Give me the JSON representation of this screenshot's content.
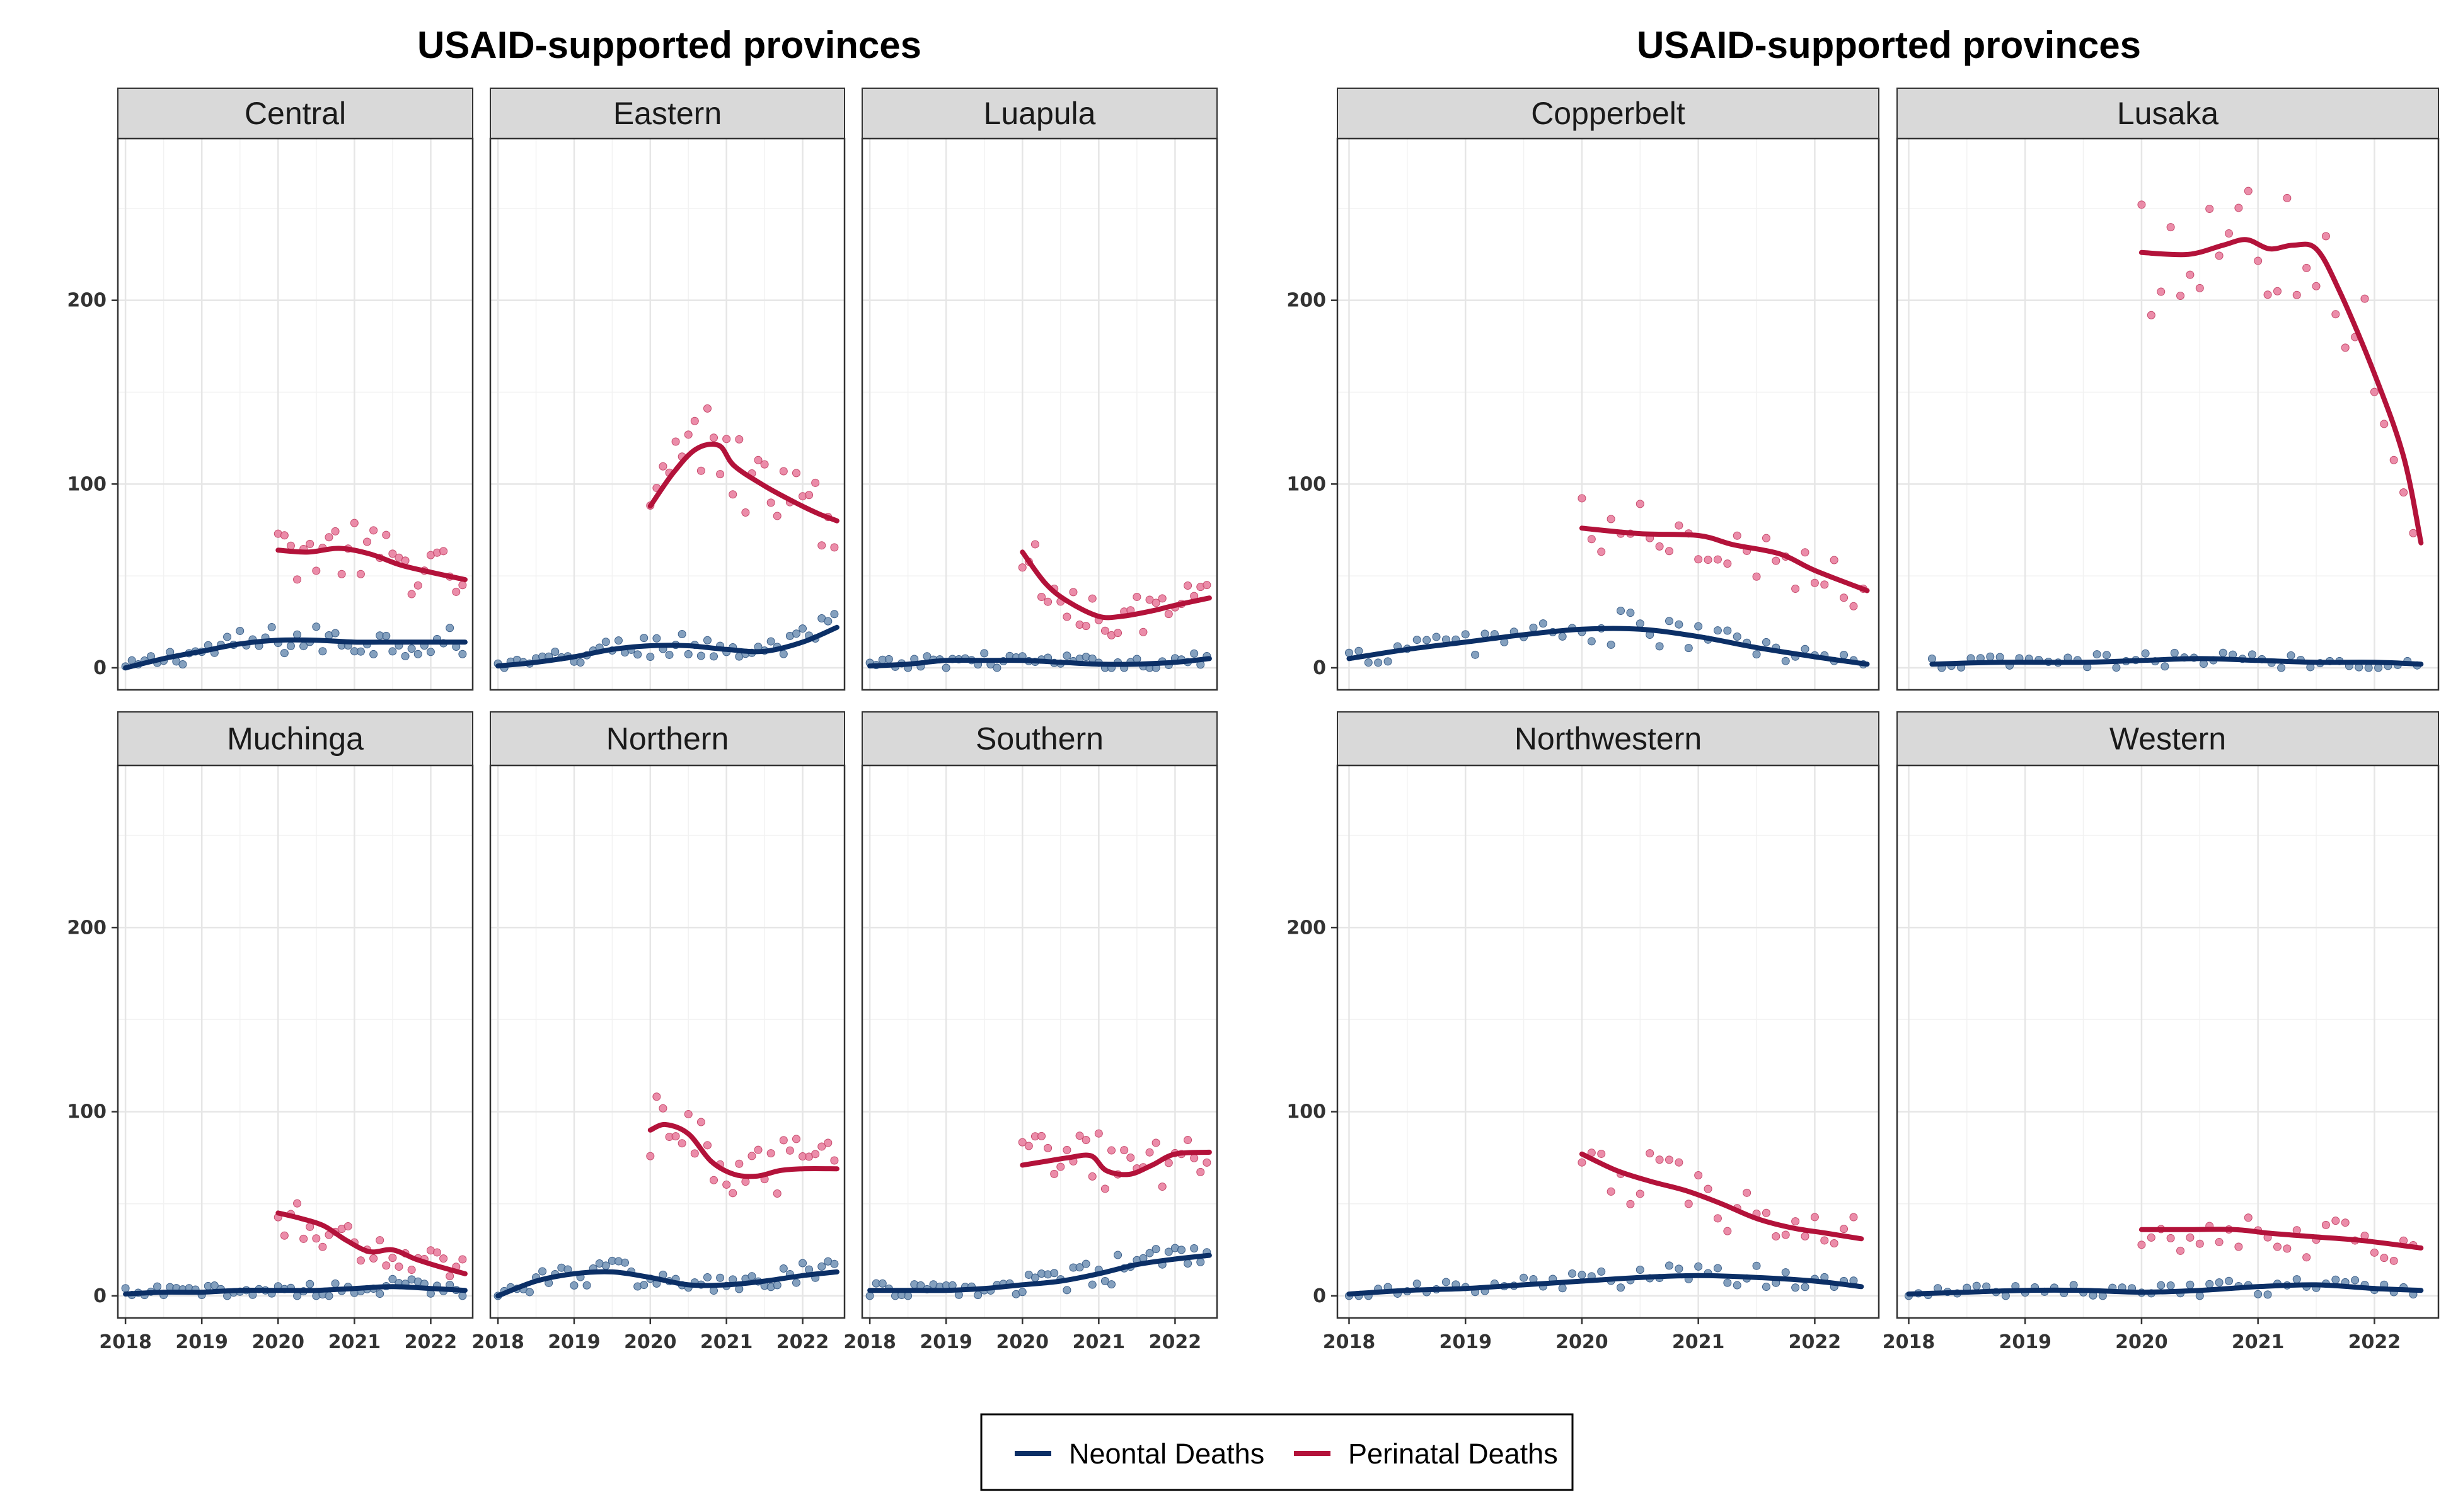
{
  "chart_data": {
    "type": "line",
    "group_titles": [
      "USAID-supported provinces",
      "USAID-supported provinces"
    ],
    "x_ticks": [
      2018,
      2019,
      2020,
      2021,
      2022
    ],
    "y_ticks": [
      0,
      100,
      200
    ],
    "xlim": [
      2017.9,
      2022.55
    ],
    "ylim": [
      -12,
      288
    ],
    "grid": true,
    "legend_position": "bottom",
    "series_names": [
      "Neontal Deaths",
      "Perinatal Deaths"
    ],
    "colors": {
      "neonatal": "#0b2f66",
      "perinatal": "#b3123a",
      "neonatal_points": "#6f8fb3",
      "perinatal_points": "#e8789a",
      "strip_fill": "#d9d9d9",
      "grid": "#e6e6e6"
    },
    "panels": [
      {
        "name": "Central",
        "neonatal_trend": [
          [
            2018.0,
            0
          ],
          [
            2018.5,
            5
          ],
          [
            2019.0,
            9
          ],
          [
            2019.5,
            13
          ],
          [
            2020.0,
            15
          ],
          [
            2020.5,
            15
          ],
          [
            2021.0,
            14
          ],
          [
            2021.5,
            14
          ],
          [
            2022.0,
            14
          ],
          [
            2022.45,
            14
          ]
        ],
        "perinatal_trend": [
          [
            2020.0,
            64
          ],
          [
            2020.4,
            63
          ],
          [
            2020.8,
            65
          ],
          [
            2021.2,
            62
          ],
          [
            2021.6,
            56
          ],
          [
            2022.0,
            52
          ],
          [
            2022.45,
            48
          ]
        ]
      },
      {
        "name": "Eastern",
        "neonatal_trend": [
          [
            2018.0,
            1
          ],
          [
            2018.5,
            3
          ],
          [
            2019.0,
            6
          ],
          [
            2019.5,
            10
          ],
          [
            2020.0,
            12
          ],
          [
            2020.5,
            12
          ],
          [
            2021.0,
            10
          ],
          [
            2021.5,
            9
          ],
          [
            2022.0,
            14
          ],
          [
            2022.45,
            22
          ]
        ],
        "perinatal_trend": [
          [
            2020.0,
            88
          ],
          [
            2020.3,
            106
          ],
          [
            2020.6,
            119
          ],
          [
            2020.9,
            121
          ],
          [
            2021.1,
            110
          ],
          [
            2021.5,
            99
          ],
          [
            2021.9,
            90
          ],
          [
            2022.2,
            84
          ],
          [
            2022.45,
            80
          ]
        ]
      },
      {
        "name": "Luapula",
        "neonatal_trend": [
          [
            2018.0,
            1
          ],
          [
            2018.5,
            2
          ],
          [
            2019.0,
            4
          ],
          [
            2019.5,
            4
          ],
          [
            2020.0,
            4
          ],
          [
            2020.5,
            3
          ],
          [
            2021.0,
            2
          ],
          [
            2021.5,
            2
          ],
          [
            2022.0,
            3
          ],
          [
            2022.45,
            5
          ]
        ],
        "perinatal_trend": [
          [
            2020.0,
            63
          ],
          [
            2020.3,
            46
          ],
          [
            2020.6,
            36
          ],
          [
            2021.0,
            28
          ],
          [
            2021.3,
            28
          ],
          [
            2021.7,
            31
          ],
          [
            2022.0,
            34
          ],
          [
            2022.45,
            38
          ]
        ]
      },
      {
        "name": "Copperbelt",
        "neonatal_trend": [
          [
            2018.0,
            5
          ],
          [
            2018.5,
            10
          ],
          [
            2019.0,
            14
          ],
          [
            2019.5,
            18
          ],
          [
            2020.0,
            21
          ],
          [
            2020.5,
            21
          ],
          [
            2021.0,
            17
          ],
          [
            2021.5,
            11
          ],
          [
            2022.0,
            6
          ],
          [
            2022.45,
            2
          ]
        ],
        "perinatal_trend": [
          [
            2020.0,
            76
          ],
          [
            2020.5,
            73
          ],
          [
            2021.0,
            72
          ],
          [
            2021.3,
            67
          ],
          [
            2021.7,
            62
          ],
          [
            2022.0,
            53
          ],
          [
            2022.45,
            42
          ]
        ]
      },
      {
        "name": "Lusaka",
        "neonatal_trend": [
          [
            2018.2,
            2
          ],
          [
            2018.8,
            3
          ],
          [
            2019.5,
            3
          ],
          [
            2020.0,
            4
          ],
          [
            2020.5,
            5
          ],
          [
            2021.0,
            4
          ],
          [
            2021.5,
            3
          ],
          [
            2022.0,
            3
          ],
          [
            2022.4,
            2
          ]
        ],
        "perinatal_trend": [
          [
            2020.0,
            226
          ],
          [
            2020.4,
            225
          ],
          [
            2020.7,
            230
          ],
          [
            2020.9,
            233
          ],
          [
            2021.1,
            228
          ],
          [
            2021.3,
            230
          ],
          [
            2021.5,
            228
          ],
          [
            2021.7,
            205
          ],
          [
            2022.0,
            160
          ],
          [
            2022.25,
            115
          ],
          [
            2022.4,
            68
          ]
        ]
      },
      {
        "name": "Muchinga",
        "neonatal_trend": [
          [
            2018.0,
            1
          ],
          [
            2018.5,
            2
          ],
          [
            2019.0,
            2
          ],
          [
            2019.5,
            3
          ],
          [
            2020.0,
            3
          ],
          [
            2020.5,
            3
          ],
          [
            2021.0,
            4
          ],
          [
            2021.5,
            5
          ],
          [
            2022.0,
            4
          ],
          [
            2022.45,
            3
          ]
        ],
        "perinatal_trend": [
          [
            2020.0,
            45
          ],
          [
            2020.3,
            42
          ],
          [
            2020.6,
            38
          ],
          [
            2020.9,
            30
          ],
          [
            2021.2,
            24
          ],
          [
            2021.5,
            25
          ],
          [
            2021.8,
            20
          ],
          [
            2022.1,
            16
          ],
          [
            2022.45,
            12
          ]
        ]
      },
      {
        "name": "Northern",
        "neonatal_trend": [
          [
            2018.0,
            0
          ],
          [
            2018.5,
            8
          ],
          [
            2019.0,
            12
          ],
          [
            2019.5,
            13
          ],
          [
            2020.0,
            10
          ],
          [
            2020.5,
            6
          ],
          [
            2021.0,
            6
          ],
          [
            2021.5,
            8
          ],
          [
            2022.0,
            11
          ],
          [
            2022.45,
            13
          ]
        ],
        "perinatal_trend": [
          [
            2020.0,
            90
          ],
          [
            2020.2,
            93
          ],
          [
            2020.5,
            88
          ],
          [
            2020.8,
            73
          ],
          [
            2021.1,
            66
          ],
          [
            2021.4,
            65
          ],
          [
            2021.7,
            68
          ],
          [
            2022.0,
            69
          ],
          [
            2022.45,
            69
          ]
        ]
      },
      {
        "name": "Southern",
        "neonatal_trend": [
          [
            2018.0,
            3
          ],
          [
            2018.5,
            3
          ],
          [
            2019.0,
            3
          ],
          [
            2019.5,
            4
          ],
          [
            2020.0,
            6
          ],
          [
            2020.5,
            8
          ],
          [
            2021.0,
            12
          ],
          [
            2021.5,
            17
          ],
          [
            2022.0,
            20
          ],
          [
            2022.45,
            22
          ]
        ],
        "perinatal_trend": [
          [
            2020.0,
            71
          ],
          [
            2020.3,
            73
          ],
          [
            2020.6,
            75
          ],
          [
            2020.9,
            76
          ],
          [
            2021.1,
            68
          ],
          [
            2021.4,
            66
          ],
          [
            2021.7,
            71
          ],
          [
            2022.0,
            77
          ],
          [
            2022.45,
            78
          ]
        ]
      },
      {
        "name": "Northwestern",
        "neonatal_trend": [
          [
            2018.0,
            1
          ],
          [
            2018.5,
            3
          ],
          [
            2019.0,
            4
          ],
          [
            2019.5,
            6
          ],
          [
            2020.0,
            8
          ],
          [
            2020.5,
            10
          ],
          [
            2021.0,
            11
          ],
          [
            2021.5,
            10
          ],
          [
            2022.0,
            8
          ],
          [
            2022.4,
            5
          ]
        ],
        "perinatal_trend": [
          [
            2020.0,
            77
          ],
          [
            2020.3,
            68
          ],
          [
            2020.6,
            62
          ],
          [
            2020.9,
            57
          ],
          [
            2021.2,
            50
          ],
          [
            2021.5,
            42
          ],
          [
            2021.8,
            37
          ],
          [
            2022.1,
            34
          ],
          [
            2022.4,
            31
          ]
        ]
      },
      {
        "name": "Western",
        "neonatal_trend": [
          [
            2018.0,
            1
          ],
          [
            2018.5,
            2
          ],
          [
            2019.0,
            3
          ],
          [
            2019.5,
            3
          ],
          [
            2020.0,
            2
          ],
          [
            2020.5,
            3
          ],
          [
            2021.0,
            5
          ],
          [
            2021.5,
            6
          ],
          [
            2022.0,
            4
          ],
          [
            2022.4,
            3
          ]
        ],
        "perinatal_trend": [
          [
            2020.0,
            36
          ],
          [
            2020.4,
            36
          ],
          [
            2020.8,
            36
          ],
          [
            2021.1,
            34
          ],
          [
            2021.5,
            32
          ],
          [
            2021.9,
            30
          ],
          [
            2022.4,
            26
          ]
        ]
      }
    ]
  }
}
